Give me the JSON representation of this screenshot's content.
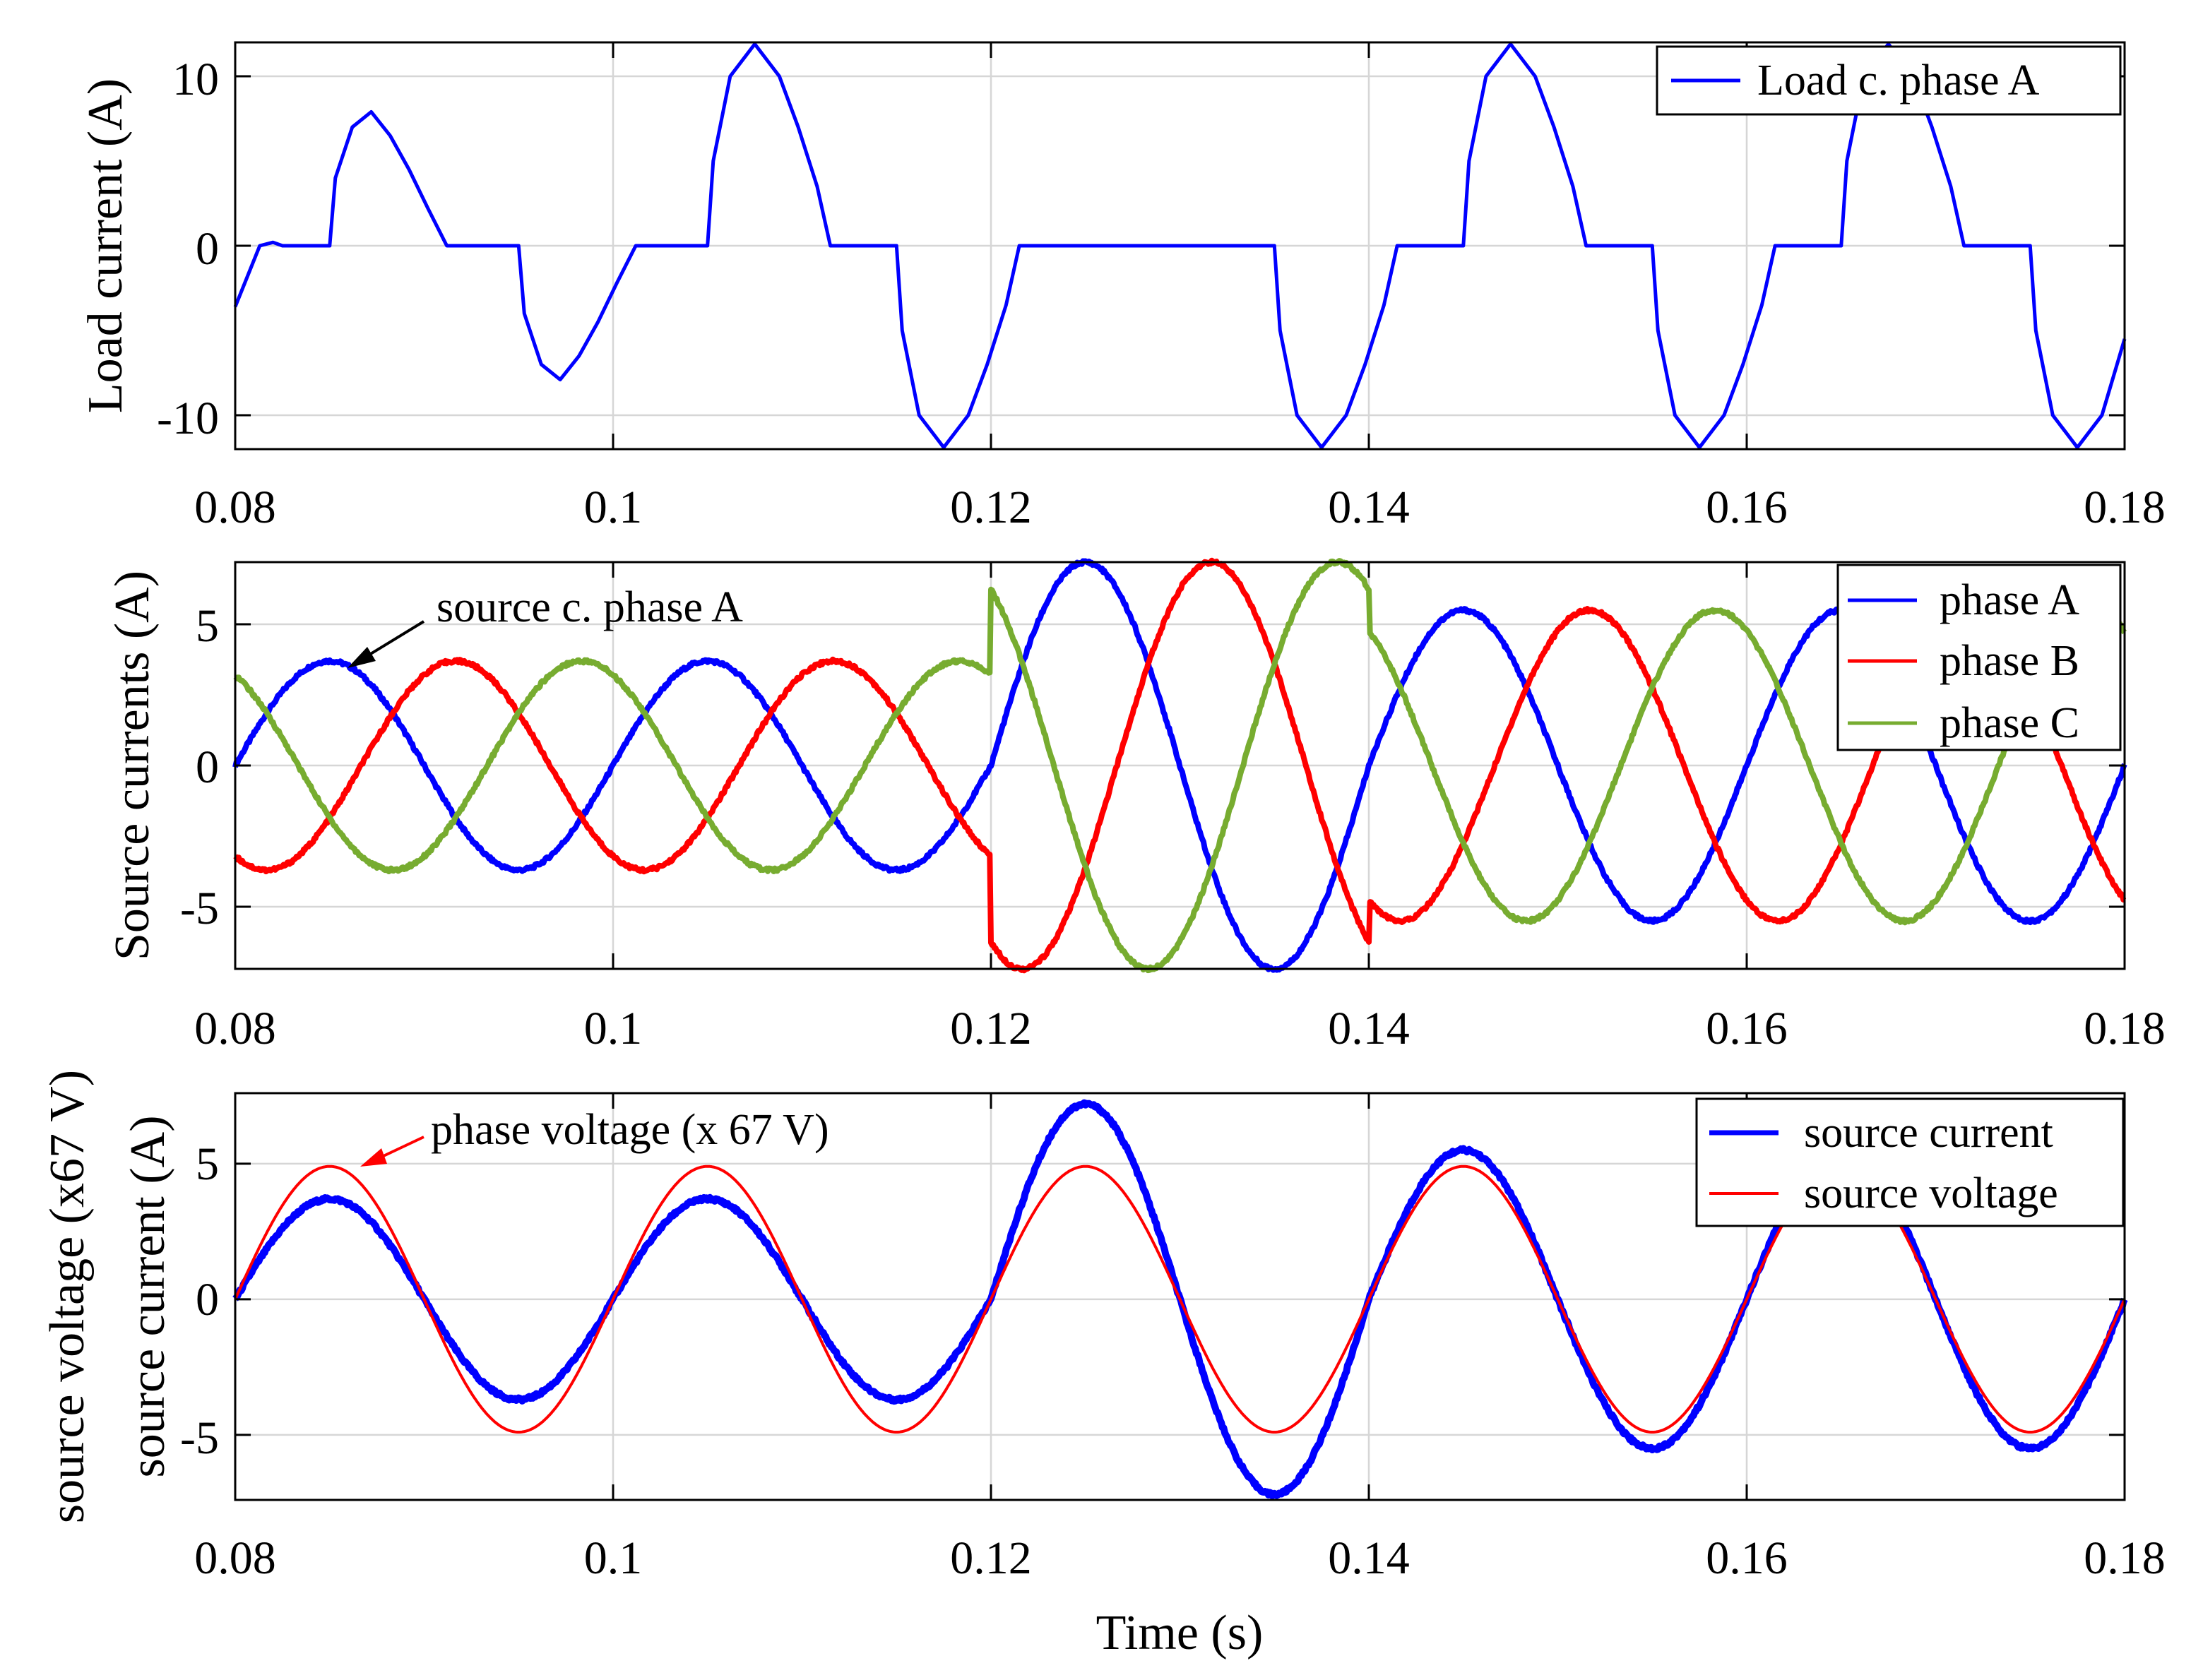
{
  "chart_data": [
    {
      "type": "line",
      "id": "load",
      "xlabel": "",
      "ylabel": "Load current (A)",
      "xlim": [
        0.08,
        0.18
      ],
      "ylim": [
        -12,
        12
      ],
      "xticks": [
        "0.08",
        "0.1",
        "0.12",
        "0.14",
        "0.16",
        "0.18"
      ],
      "yticks": [
        "-10",
        "0",
        "10"
      ],
      "grid": true,
      "legend_position": "top-right",
      "series": [
        {
          "name": "Load c. phase A",
          "color": "#0000ff",
          "x": [
            0.08,
            0.0813,
            0.082,
            0.0825,
            0.085,
            0.0853,
            0.0862,
            0.0872,
            0.0882,
            0.0892,
            0.0902,
            0.0912,
            0.0925,
            0.095,
            0.0953,
            0.0962,
            0.0972,
            0.0982,
            0.0992,
            0.1002,
            0.1012,
            0.1025,
            0.105,
            0.1053,
            0.1062,
            0.1075,
            0.1088,
            0.1098,
            0.1108,
            0.1115,
            0.1125,
            0.115,
            0.1153,
            0.1162,
            0.1175,
            0.1188,
            0.1198,
            0.1208,
            0.1215,
            0.1225,
            0.135,
            0.1353,
            0.1362,
            0.1375,
            0.1388,
            0.1398,
            0.1408,
            0.1415,
            0.1425,
            0.145,
            0.1453,
            0.1462,
            0.1475,
            0.1488,
            0.1498,
            0.1508,
            0.1515,
            0.1525,
            0.155,
            0.1553,
            0.1562,
            0.1575,
            0.1588,
            0.1598,
            0.1608,
            0.1615,
            0.1625,
            0.165,
            0.1653,
            0.1662,
            0.1675,
            0.1688,
            0.1698,
            0.1708,
            0.1715,
            0.1725,
            0.175,
            0.1753,
            0.1762,
            0.1775,
            0.1788,
            0.18
          ],
          "values": [
            -3.6,
            0,
            0.2,
            0,
            0,
            4,
            7,
            7.9,
            6.5,
            4.5,
            2.2,
            0,
            0,
            0,
            -4,
            -7,
            -7.9,
            -6.5,
            -4.5,
            -2.2,
            0,
            0,
            0,
            5,
            10,
            11.9,
            10,
            7,
            3.5,
            0,
            0,
            0,
            -5,
            -10,
            -11.9,
            -10,
            -7,
            -3.5,
            0,
            0,
            0,
            -5,
            -10,
            -11.9,
            -10,
            -7,
            -3.5,
            0,
            0,
            0,
            5,
            10,
            11.9,
            10,
            7,
            3.5,
            0,
            0,
            0,
            -5,
            -10,
            -11.9,
            -10,
            -7,
            -3.5,
            0,
            0,
            0,
            5,
            10,
            11.9,
            10,
            7,
            3.5,
            0,
            0,
            0,
            -5,
            -10,
            -11.9,
            -10,
            -5.5
          ]
        }
      ]
    },
    {
      "type": "line",
      "id": "source",
      "xlabel": "",
      "ylabel": "Source currents (A)",
      "xlim": [
        0.08,
        0.18
      ],
      "ylim": [
        -7.2,
        7.2
      ],
      "xticks": [
        "0.08",
        "0.1",
        "0.12",
        "0.14",
        "0.16",
        "0.18"
      ],
      "yticks": [
        "-5",
        "0",
        "5"
      ],
      "grid": true,
      "legend_position": "top-right",
      "frequency_hz": 50,
      "amplitude_segments": [
        {
          "from": 0.08,
          "to": 0.12,
          "amplitude": 3.7
        },
        {
          "from": 0.12,
          "to": 0.14,
          "amplitude": 7.2
        },
        {
          "from": 0.14,
          "to": 0.18,
          "amplitude": 5.5
        }
      ],
      "series": [
        {
          "name": "phase A",
          "color": "#0000ff",
          "phase_deg": 0
        },
        {
          "name": "phase B",
          "color": "#ff0000",
          "phase_deg": -120
        },
        {
          "name": "phase C",
          "color": "#77ac30",
          "phase_deg": 120
        }
      ],
      "annotation": "source c. phase A"
    },
    {
      "type": "line",
      "id": "pf",
      "xlabel": "Time (s)",
      "ylabel_lines": [
        "source voltage (x67 V)",
        "source current (A)"
      ],
      "xlim": [
        0.08,
        0.18
      ],
      "ylim": [
        -7.4,
        7.6
      ],
      "xticks": [
        "0.08",
        "0.1",
        "0.12",
        "0.14",
        "0.16",
        "0.18"
      ],
      "yticks": [
        "-5",
        "0",
        "5"
      ],
      "grid": true,
      "legend_position": "top-right",
      "frequency_hz": 50,
      "series": [
        {
          "name": "source current",
          "color": "#0000ff",
          "amplitude_segments": [
            {
              "from": 0.08,
              "to": 0.12,
              "amplitude": 3.7
            },
            {
              "from": 0.12,
              "to": 0.14,
              "amplitude": 7.2
            },
            {
              "from": 0.14,
              "to": 0.18,
              "amplitude": 5.5
            }
          ]
        },
        {
          "name": "source voltage",
          "color": "#ff0000",
          "amplitude": 4.9
        }
      ],
      "annotation": "phase voltage (x 67 V)"
    }
  ]
}
